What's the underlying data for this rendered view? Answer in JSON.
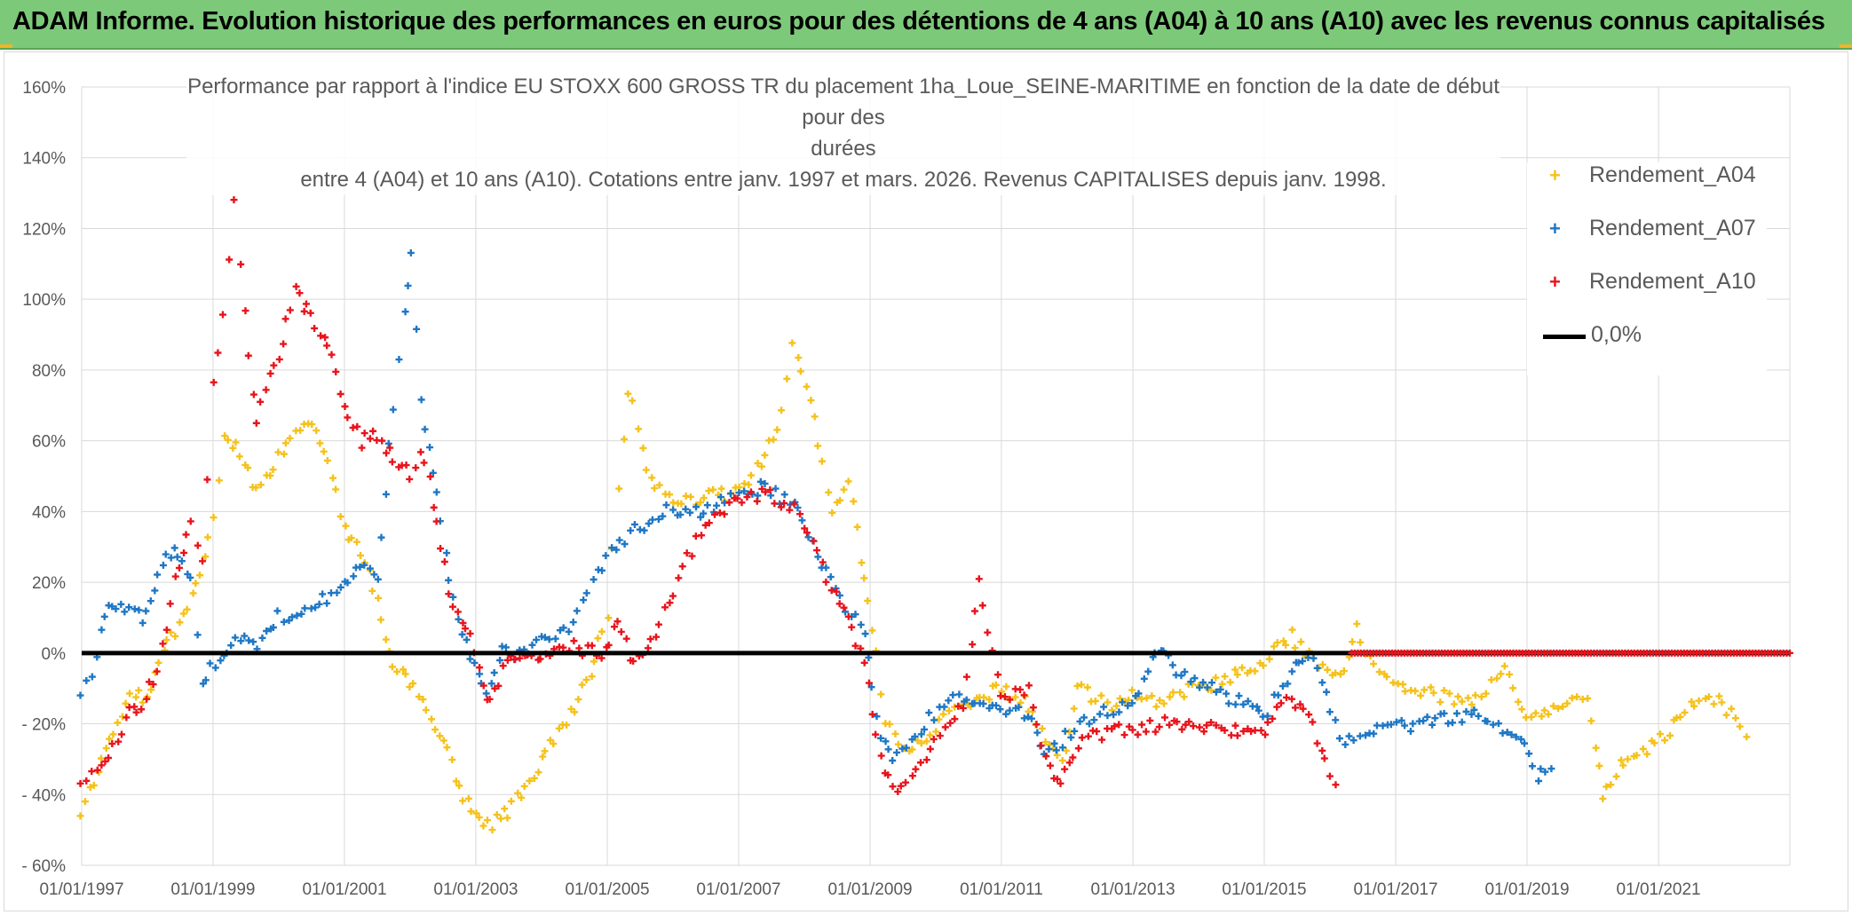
{
  "banner": {
    "title": "ADAM Informe. Evolution historique des performances en euros pour des détentions de 4 ans (A04) à 10 ans (A10) avec les revenus connus capitalisés"
  },
  "colors": {
    "banner_bg": "#7dc97a",
    "A04": "#f5c21b",
    "A07": "#1f77c4",
    "A10": "#e8141c",
    "zero_line": "#000000",
    "grid": "#d9d9d9",
    "axis_text": "#595959"
  },
  "chart_data": {
    "type": "scatter",
    "title_line1": "Performance par rapport à l'indice EU STOXX 600 GROSS TR  du placement 1ha_Loue_SEINE-MARITIME en fonction de la date de début pour des",
    "title_line2": "durées",
    "title_line3": "entre 4 (A04) et 10 ans (A10). Cotations entre janv. 1997 et mars. 2026. Revenus CAPITALISES depuis janv. 1998.",
    "x_axis": {
      "type": "date",
      "range": [
        "1997-01-01",
        "2023-01-01"
      ],
      "tick_labels": [
        "01/01/1997",
        "01/01/1999",
        "01/01/2001",
        "01/01/2003",
        "01/01/2005",
        "01/01/2007",
        "01/01/2009",
        "01/01/2011",
        "01/01/2013",
        "01/01/2015",
        "01/01/2017",
        "01/01/2019",
        "01/01/2021"
      ]
    },
    "y_axis": {
      "range": [
        -60,
        160
      ],
      "unit": "%",
      "tick_labels": [
        "160%",
        "140%",
        "120%",
        "100%",
        "80%",
        "60%",
        "40%",
        "20%",
        "0%",
        "- 20%",
        "- 40%",
        "- 60%"
      ]
    },
    "grid": true,
    "legend_position": "top-right",
    "series": [
      {
        "name": "Rendement_A04",
        "marker": "+",
        "points": [
          [
            "1997-01-01",
            -45
          ],
          [
            "1997-04-01",
            -33
          ],
          [
            "1997-07-01",
            -22
          ],
          [
            "1997-10-01",
            -13
          ],
          [
            "1998-01-01",
            -12
          ],
          [
            "1998-04-01",
            0
          ],
          [
            "1998-07-01",
            8
          ],
          [
            "1998-10-01",
            18
          ],
          [
            "1999-01-01",
            40
          ],
          [
            "1999-03-01",
            60
          ],
          [
            "1999-06-01",
            57
          ],
          [
            "1999-09-01",
            45
          ],
          [
            "2000-01-01",
            55
          ],
          [
            "2000-04-01",
            62
          ],
          [
            "2000-07-01",
            65
          ],
          [
            "2000-10-01",
            55
          ],
          [
            "2001-01-01",
            35
          ],
          [
            "2001-04-01",
            28
          ],
          [
            "2001-07-01",
            15
          ],
          [
            "2001-10-01",
            -5
          ],
          [
            "2002-01-01",
            -8
          ],
          [
            "2002-04-01",
            -15
          ],
          [
            "2002-07-01",
            -25
          ],
          [
            "2002-10-01",
            -38
          ],
          [
            "2003-01-01",
            -47
          ],
          [
            "2003-04-01",
            -48
          ],
          [
            "2003-07-01",
            -45
          ],
          [
            "2003-10-01",
            -38
          ],
          [
            "2004-01-01",
            -30
          ],
          [
            "2004-04-01",
            -22
          ],
          [
            "2004-07-01",
            -15
          ],
          [
            "2004-10-01",
            -5
          ],
          [
            "2005-01-01",
            10
          ],
          [
            "2005-03-01",
            45
          ],
          [
            "2005-05-01",
            75
          ],
          [
            "2005-09-01",
            48
          ],
          [
            "2006-01-01",
            42
          ],
          [
            "2006-06-01",
            44
          ],
          [
            "2007-01-01",
            45
          ],
          [
            "2007-06-01",
            55
          ],
          [
            "2007-09-01",
            68
          ],
          [
            "2007-11-01",
            88
          ],
          [
            "2008-02-01",
            72
          ],
          [
            "2008-06-01",
            40
          ],
          [
            "2008-09-01",
            48
          ],
          [
            "2008-12-01",
            20
          ],
          [
            "2009-02-01",
            0
          ],
          [
            "2009-04-01",
            -20
          ],
          [
            "2009-08-01",
            -28
          ],
          [
            "2009-12-01",
            -22
          ],
          [
            "2010-06-01",
            -15
          ],
          [
            "2011-01-01",
            -10
          ],
          [
            "2011-06-01",
            -15
          ],
          [
            "2011-09-01",
            -25
          ],
          [
            "2011-12-01",
            -32
          ],
          [
            "2012-03-01",
            -10
          ],
          [
            "2012-09-01",
            -15
          ],
          [
            "2013-01-01",
            -12
          ],
          [
            "2013-06-01",
            -15
          ],
          [
            "2013-12-01",
            -10
          ],
          [
            "2014-06-01",
            -8
          ],
          [
            "2015-01-01",
            -2
          ],
          [
            "2015-06-01",
            5
          ],
          [
            "2015-10-01",
            -3
          ],
          [
            "2016-03-01",
            -8
          ],
          [
            "2016-06-01",
            8
          ],
          [
            "2016-09-01",
            -5
          ],
          [
            "2017-03-01",
            -10
          ],
          [
            "2017-09-01",
            -12
          ],
          [
            "2018-03-01",
            -15
          ],
          [
            "2018-09-01",
            -5
          ],
          [
            "2019-01-01",
            -18
          ],
          [
            "2019-06-01",
            -15
          ],
          [
            "2019-12-01",
            -12
          ],
          [
            "2020-03-01",
            -40
          ],
          [
            "2020-06-01",
            -32
          ],
          [
            "2020-10-01",
            -28
          ],
          [
            "2021-03-01",
            -22
          ],
          [
            "2021-06-01",
            -15
          ],
          [
            "2021-12-01",
            -13
          ],
          [
            "2022-04-01",
            -20
          ],
          [
            "2022-06-01",
            -28
          ]
        ]
      },
      {
        "name": "Rendement_A07",
        "marker": "+",
        "points": [
          [
            "1997-01-01",
            -10
          ],
          [
            "1997-03-01",
            -5
          ],
          [
            "1997-06-01",
            15
          ],
          [
            "1997-09-01",
            12
          ],
          [
            "1997-12-01",
            10
          ],
          [
            "1998-03-01",
            22
          ],
          [
            "1998-06-01",
            30
          ],
          [
            "1998-09-01",
            22
          ],
          [
            "1998-11-01",
            -8
          ],
          [
            "1999-03-01",
            0
          ],
          [
            "1999-06-01",
            5
          ],
          [
            "1999-09-01",
            3
          ],
          [
            "2000-01-01",
            10
          ],
          [
            "2000-06-01",
            12
          ],
          [
            "2000-09-01",
            15
          ],
          [
            "2001-01-01",
            20
          ],
          [
            "2001-04-01",
            25
          ],
          [
            "2001-07-01",
            22
          ],
          [
            "2001-10-01",
            70
          ],
          [
            "2001-12-01",
            95
          ],
          [
            "2002-01-01",
            113
          ],
          [
            "2002-03-01",
            70
          ],
          [
            "2002-06-01",
            45
          ],
          [
            "2002-09-01",
            15
          ],
          [
            "2002-12-01",
            -2
          ],
          [
            "2003-03-01",
            -12
          ],
          [
            "2003-06-01",
            0
          ],
          [
            "2003-09-01",
            0
          ],
          [
            "2004-01-01",
            3
          ],
          [
            "2004-06-01",
            8
          ],
          [
            "2004-12-01",
            25
          ],
          [
            "2005-06-01",
            35
          ],
          [
            "2005-12-01",
            40
          ],
          [
            "2006-06-01",
            40
          ],
          [
            "2007-01-01",
            45
          ],
          [
            "2007-06-01",
            47
          ],
          [
            "2007-12-01",
            40
          ],
          [
            "2008-06-01",
            20
          ],
          [
            "2008-12-01",
            5
          ],
          [
            "2009-03-01",
            -25
          ],
          [
            "2009-06-01",
            -30
          ],
          [
            "2009-12-01",
            -18
          ],
          [
            "2010-06-01",
            -12
          ],
          [
            "2011-01-01",
            -15
          ],
          [
            "2011-06-01",
            -18
          ],
          [
            "2011-09-01",
            -28
          ],
          [
            "2011-12-01",
            -25
          ],
          [
            "2012-06-01",
            -18
          ],
          [
            "2012-12-01",
            -15
          ],
          [
            "2013-03-01",
            -8
          ],
          [
            "2013-06-01",
            2
          ],
          [
            "2013-09-01",
            -5
          ],
          [
            "2014-01-01",
            -8
          ],
          [
            "2014-06-01",
            -12
          ],
          [
            "2015-01-01",
            -18
          ],
          [
            "2015-06-01",
            -5
          ],
          [
            "2015-09-01",
            0
          ],
          [
            "2016-01-01",
            -15
          ],
          [
            "2016-03-01",
            -25
          ],
          [
            "2016-09-01",
            -22
          ],
          [
            "2017-06-01",
            -20
          ],
          [
            "2018-01-01",
            -18
          ],
          [
            "2018-06-01",
            -18
          ],
          [
            "2018-12-01",
            -25
          ],
          [
            "2019-03-01",
            -35
          ],
          [
            "2019-06-01",
            -30
          ]
        ]
      },
      {
        "name": "Rendement_A10",
        "marker": "+",
        "points": [
          [
            "1997-01-01",
            -38
          ],
          [
            "1997-03-01",
            -33
          ],
          [
            "1997-06-01",
            -30
          ],
          [
            "1997-09-01",
            -18
          ],
          [
            "1997-12-01",
            -15
          ],
          [
            "1998-03-01",
            -5
          ],
          [
            "1998-06-01",
            20
          ],
          [
            "1998-09-01",
            38
          ],
          [
            "1998-11-01",
            25
          ],
          [
            "1999-01-01",
            75
          ],
          [
            "1999-03-01",
            95
          ],
          [
            "1999-05-01",
            128
          ],
          [
            "1999-07-01",
            95
          ],
          [
            "1999-09-01",
            65
          ],
          [
            "2000-01-01",
            85
          ],
          [
            "2000-04-01",
            102
          ],
          [
            "2000-07-01",
            95
          ],
          [
            "2000-10-01",
            88
          ],
          [
            "2001-01-01",
            70
          ],
          [
            "2001-04-01",
            60
          ],
          [
            "2001-07-01",
            62
          ],
          [
            "2001-10-01",
            55
          ],
          [
            "2002-01-01",
            50
          ],
          [
            "2002-03-01",
            58
          ],
          [
            "2002-06-01",
            38
          ],
          [
            "2002-09-01",
            12
          ],
          [
            "2002-12-01",
            5
          ],
          [
            "2003-03-01",
            -15
          ],
          [
            "2003-06-01",
            -5
          ],
          [
            "2003-09-01",
            0
          ],
          [
            "2004-01-01",
            0
          ],
          [
            "2004-06-01",
            2
          ],
          [
            "2004-12-01",
            0
          ],
          [
            "2005-03-01",
            8
          ],
          [
            "2005-06-01",
            -3
          ],
          [
            "2005-09-01",
            2
          ],
          [
            "2006-01-01",
            18
          ],
          [
            "2006-06-01",
            35
          ],
          [
            "2006-12-01",
            43
          ],
          [
            "2007-06-01",
            45
          ],
          [
            "2007-12-01",
            40
          ],
          [
            "2008-06-01",
            18
          ],
          [
            "2008-09-01",
            10
          ],
          [
            "2008-12-01",
            -2
          ],
          [
            "2009-03-01",
            -30
          ],
          [
            "2009-06-01",
            -38
          ],
          [
            "2009-12-01",
            -28
          ],
          [
            "2010-06-01",
            -15
          ],
          [
            "2010-09-01",
            20
          ],
          [
            "2011-01-01",
            -12
          ],
          [
            "2011-06-01",
            -10
          ],
          [
            "2011-09-01",
            -30
          ],
          [
            "2011-12-01",
            -37
          ],
          [
            "2012-03-01",
            -25
          ],
          [
            "2012-09-01",
            -22
          ],
          [
            "2013-01-01",
            -22
          ],
          [
            "2013-06-01",
            -20
          ],
          [
            "2014-01-01",
            -20
          ],
          [
            "2014-06-01",
            -22
          ],
          [
            "2015-01-01",
            -22
          ],
          [
            "2015-06-01",
            -12
          ],
          [
            "2015-09-01",
            -18
          ],
          [
            "2016-01-01",
            -35
          ],
          [
            "2016-03-01",
            -40
          ]
        ]
      },
      {
        "name": "0,0%",
        "type": "line",
        "points": [
          [
            "1997-01-01",
            0
          ],
          [
            "2023-01-01",
            0
          ]
        ]
      }
    ],
    "A10_flat_zero": {
      "from": "2016-05-01",
      "to": "2023-01-01",
      "value": 0
    }
  }
}
